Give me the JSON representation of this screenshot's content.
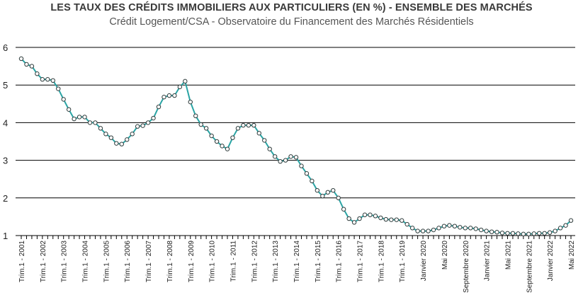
{
  "chart_data": {
    "type": "line",
    "title": "LES TAUX DES CRÉDITS IMMOBILIERS AUX PARTICULIERS (EN %) - ENSEMBLE DES MARCHÉS",
    "subtitle": "Crédit Logement/CSA - Observatoire du Financement des Marchés Résidentiels",
    "xlabel": "",
    "ylabel": "",
    "ylim": [
      1,
      6
    ],
    "yticks": [
      1,
      2,
      3,
      4,
      5,
      6
    ],
    "grid": "horizontal",
    "legend": "none",
    "colors": {
      "line": "#2aa4a4",
      "marker_edge": "#2d3a3a",
      "marker_fill": "#ffffff",
      "grid": "#000000"
    },
    "xtick_labels": [
      "Trim.1 - 2001",
      "Trim.1 - 2002",
      "Trim.1 - 2003",
      "Trim.1 - 2004",
      "Trim.1 - 2005",
      "Trim.1 - 2006",
      "Trim.1 - 2007",
      "Trim.1 - 2008",
      "Trim.1 - 2009",
      "Trim.1 - 2010",
      "Trim.1 - 2011",
      "Trim.1 - 2012",
      "Trim.1 - 2013",
      "Trim.1 - 2014",
      "Trim.1 - 2015",
      "Trim.1 - 2016",
      "Trim.1 - 2017",
      "Trim.1 - 2018",
      "Trim.1 - 2019",
      "Janvier 2020",
      "Mai 2020",
      "Septembre 2020",
      "Janvier 2021",
      "Mai 2021",
      "Septembre 2021",
      "Janvier 2022",
      "Mai 2022"
    ],
    "values": [
      5.7,
      5.55,
      5.5,
      5.3,
      5.15,
      5.15,
      5.12,
      4.9,
      4.62,
      4.35,
      4.1,
      4.15,
      4.15,
      4.0,
      4.0,
      3.85,
      3.7,
      3.6,
      3.45,
      3.43,
      3.55,
      3.7,
      3.9,
      3.92,
      4.0,
      4.12,
      4.42,
      4.68,
      4.72,
      4.72,
      4.95,
      5.1,
      4.55,
      4.18,
      3.95,
      3.85,
      3.65,
      3.5,
      3.38,
      3.3,
      3.6,
      3.85,
      3.93,
      3.93,
      3.93,
      3.72,
      3.53,
      3.3,
      3.1,
      2.97,
      3.0,
      3.1,
      3.08,
      2.85,
      2.65,
      2.45,
      2.2,
      2.05,
      2.15,
      2.2,
      2.0,
      1.7,
      1.45,
      1.35,
      1.45,
      1.55,
      1.55,
      1.52,
      1.47,
      1.43,
      1.42,
      1.42,
      1.4,
      1.3,
      1.2,
      1.12,
      1.12,
      1.12,
      1.15,
      1.2,
      1.25,
      1.27,
      1.25,
      1.22,
      1.2,
      1.2,
      1.18,
      1.15,
      1.12,
      1.1,
      1.09,
      1.07,
      1.06,
      1.06,
      1.05,
      1.04,
      1.04,
      1.05,
      1.06,
      1.06,
      1.08,
      1.12,
      1.2,
      1.27,
      1.4
    ]
  }
}
